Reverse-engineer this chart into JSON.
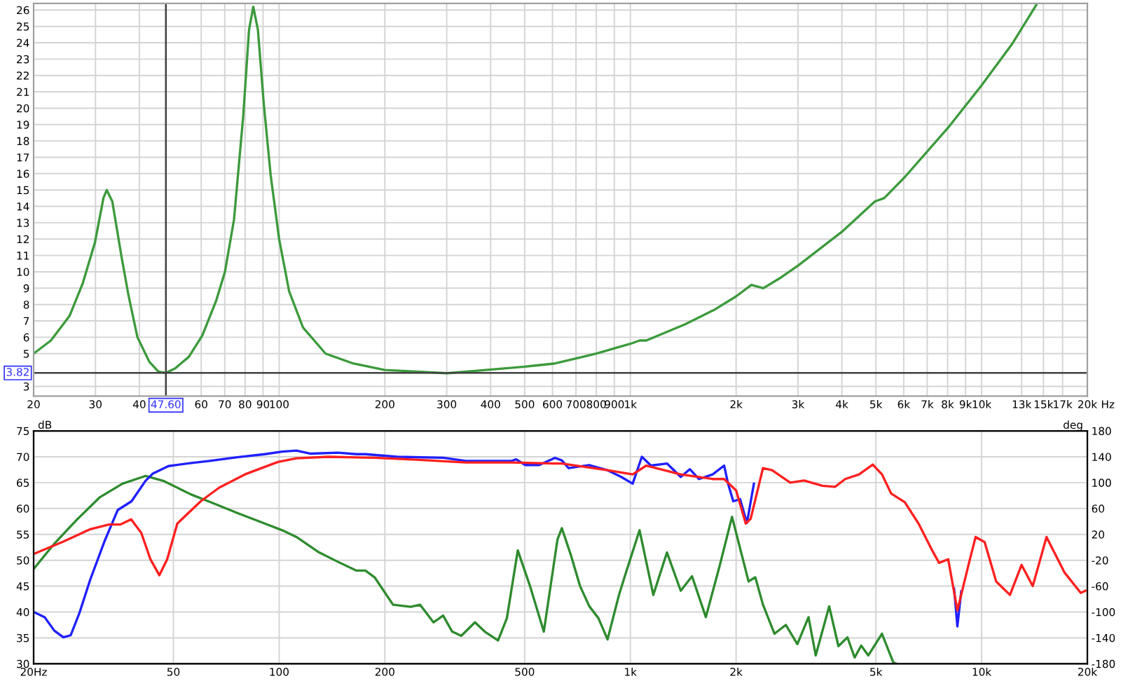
{
  "chart_data": [
    {
      "type": "line",
      "log": "x",
      "grid": true,
      "marker": "none",
      "line_style": "solid",
      "xlim": [
        20,
        20000
      ],
      "ylim": [
        2.4,
        26.4
      ],
      "xticks": [
        20,
        30,
        40,
        60,
        70,
        80,
        90,
        100,
        200,
        300,
        400,
        500,
        600,
        700,
        800,
        900,
        {
          "value": 1000,
          "label": "1k"
        },
        {
          "value": 2000,
          "label": "2k"
        },
        {
          "value": 3000,
          "label": "3k"
        },
        {
          "value": 4000,
          "label": "4k"
        },
        {
          "value": 5000,
          "label": "5k"
        },
        {
          "value": 6000,
          "label": "6k"
        },
        {
          "value": 7000,
          "label": "7k"
        },
        {
          "value": 8000,
          "label": "8k"
        },
        {
          "value": 9000,
          "label": "9k"
        },
        {
          "value": 10000,
          "label": "10k"
        },
        {
          "value": 13000,
          "label": "13k"
        },
        {
          "value": 15000,
          "label": "15k"
        },
        {
          "value": 17000,
          "label": "17k"
        },
        {
          "value": 20000,
          "label": "20k"
        }
      ],
      "xlabel": "Hz",
      "yticks": [
        3,
        5,
        6,
        7,
        8,
        9,
        10,
        11,
        12,
        13,
        14,
        15,
        16,
        17,
        18,
        19,
        20,
        21,
        22,
        23,
        24,
        25,
        26
      ],
      "ref_lines": [
        {
          "axis": "x",
          "value": 47.6,
          "label": "47.60",
          "color": "#404040"
        },
        {
          "axis": "y",
          "value": 3.82,
          "label": "3.82",
          "color": "#404040"
        }
      ],
      "series": [
        {
          "color": "#3c9a3c",
          "x": [
            20,
            22.4,
            25.3,
            27.6,
            29.9,
            31.6,
            32.3,
            33.5,
            35.6,
            37.3,
            39.5,
            42.7,
            45.3,
            47.6,
            50.6,
            55.3,
            60.4,
            66.1,
            70.1,
            74.4,
            79,
            82.1,
            84.4,
            87,
            90.4,
            94.6,
            100,
            106.8,
            116.9,
            135.6,
            162.4,
            200,
            247,
            300,
            387,
            500,
            611,
            800,
            1000,
            1062,
            1110,
            1433,
            1741,
            2000,
            2211,
            2390,
            2660,
            3010,
            4029,
            4968,
            5275,
            6050,
            8020,
            10000,
            12190,
            14300
          ],
          "values": [
            5.0,
            5.8,
            7.3,
            9.3,
            11.8,
            14.5,
            15.0,
            14.3,
            10.9,
            8.5,
            6.0,
            4.5,
            3.9,
            3.82,
            4.1,
            4.8,
            6.1,
            8.2,
            10.0,
            13.2,
            19.5,
            24.8,
            26.2,
            24.8,
            20.3,
            15.9,
            12.0,
            8.8,
            6.6,
            5.0,
            4.4,
            4.0,
            3.9,
            3.8,
            4.0,
            4.2,
            4.4,
            5.0,
            5.6,
            5.8,
            5.8,
            6.8,
            7.7,
            8.5,
            9.2,
            9.0,
            9.6,
            10.4,
            12.5,
            14.3,
            14.5,
            15.8,
            18.8,
            21.4,
            23.9,
            26.3
          ]
        }
      ]
    },
    {
      "type": "line",
      "log": "x",
      "grid": true,
      "marker": "none",
      "line_style": "solid",
      "xlim": [
        20,
        20000
      ],
      "ylim": [
        30,
        75
      ],
      "y2lim": [
        -180,
        180
      ],
      "ylabel": "dB",
      "y2label": "deg",
      "xticks": [
        {
          "value": 20,
          "label": "20Hz"
        },
        50,
        100,
        200,
        500,
        {
          "value": 1000,
          "label": "1k"
        },
        {
          "value": 2000,
          "label": "2k"
        },
        {
          "value": 5000,
          "label": "5k"
        },
        {
          "value": 10000,
          "label": "10k"
        },
        {
          "value": 20000,
          "label": "20k"
        }
      ],
      "yticks": [
        30,
        35,
        40,
        45,
        50,
        55,
        60,
        65,
        70,
        75
      ],
      "y2ticks": [
        -180,
        -140,
        -100,
        -60,
        -20,
        20,
        60,
        100,
        140,
        180
      ],
      "series": [
        {
          "color": "#2e8b2e",
          "x": [
            20,
            22.9,
            26.6,
            30.9,
            35.8,
            41.7,
            47,
            56.2,
            65.1,
            75.6,
            91,
            102,
            112,
            130,
            147,
            166,
            176,
            187,
            211,
            237,
            252,
            275,
            293,
            311,
            330,
            361,
            385,
            420,
            445,
            478,
            518,
            567,
            620,
            638,
            677,
            719,
            764,
            811,
            861,
            928,
            971,
            1062,
            1162,
            1271,
            1391,
            1498,
            1640,
            1795,
            1947,
            2170,
            2268,
            2385,
            2572,
            2770,
            2988,
            3215,
            3370,
            3681,
            3911,
            4150,
            4349,
            4541,
            4756,
            5203,
            5600,
            5720
          ],
          "values": [
            48.3,
            53.2,
            57.9,
            62.2,
            64.8,
            66.3,
            65.3,
            62.7,
            61.0,
            59.2,
            57.1,
            55.8,
            54.5,
            51.5,
            49.7,
            48.0,
            48.0,
            46.7,
            41.4,
            41.0,
            41.4,
            38.0,
            39.3,
            36.2,
            35.4,
            38.0,
            36.2,
            34.5,
            38.8,
            51.9,
            45.0,
            36.2,
            54.0,
            56.2,
            51.0,
            45.0,
            41.1,
            38.8,
            34.7,
            43.3,
            47.6,
            55.8,
            43.3,
            51.5,
            44.1,
            46.9,
            39.0,
            48.9,
            58.4,
            45.9,
            46.7,
            41.4,
            35.8,
            37.5,
            33.8,
            39.0,
            31.6,
            41.1,
            33.4,
            35.1,
            31.2,
            33.5,
            31.6,
            35.8,
            30.3,
            30.0
          ]
        },
        {
          "color": "#1f1fff",
          "x": [
            20,
            21.5,
            22.9,
            24.3,
            25.5,
            27,
            29,
            31.8,
            34.7,
            38,
            41.6,
            43.6,
            48.4,
            56.2,
            63.4,
            76,
            91,
            102,
            112,
            123,
            147,
            166,
            176,
            217,
            293,
            340,
            459,
            473,
            502,
            550,
            610,
            638,
            667,
            763,
            861,
            942,
            1015,
            1078,
            1144,
            1271,
            1391,
            1476,
            1567,
            1715,
            1849,
            1897,
            1963,
            2053,
            2147,
            2247
          ],
          "values": [
            40.0,
            39.0,
            36.4,
            35.1,
            35.5,
            39.8,
            46.3,
            53.6,
            59.7,
            61.4,
            65.3,
            66.7,
            68.2,
            68.8,
            69.2,
            69.9,
            70.5,
            71.0,
            71.2,
            70.6,
            70.8,
            70.5,
            70.5,
            70.0,
            69.8,
            69.2,
            69.2,
            69.5,
            68.4,
            68.4,
            69.8,
            69.3,
            67.8,
            68.4,
            67.4,
            66.1,
            64.8,
            70.0,
            68.3,
            68.7,
            66.1,
            67.6,
            65.7,
            66.6,
            68.3,
            64.8,
            61.4,
            61.8,
            57.2,
            64.8
          ]
        },
        {
          "color": "#1f1fff",
          "x": [
            8350,
            8530,
            8750
          ],
          "values": [
            44.5,
            37.2,
            44.0
          ]
        },
        {
          "color": "#ff1f1f",
          "x": [
            20,
            24.3,
            29,
            32.8,
            35.3,
            37.9,
            40.5,
            43,
            45.6,
            48,
            51.3,
            59.8,
            67.4,
            80.6,
            99.2,
            112,
            138,
            187,
            251,
            340,
            459,
            610,
            638,
            861,
            1015,
            1110,
            1391,
            1715,
            1849,
            2000,
            2130,
            2200,
            2385,
            2532,
            2852,
            3122,
            3523,
            3829,
            4089,
            4478,
            4898,
            5203,
            5525,
            6044,
            6612,
            7232,
            7565,
            8033,
            8530,
            9190,
            9612,
            10200,
            11000,
            12040,
            12990,
            13980,
            15300,
            17230,
            19150,
            19750
          ],
          "values": [
            51.2,
            53.6,
            56.0,
            56.9,
            56.9,
            57.9,
            55.3,
            50.2,
            47.1,
            50.2,
            57.1,
            61.4,
            64.0,
            66.7,
            69.0,
            69.7,
            70.0,
            69.8,
            69.4,
            68.9,
            68.9,
            68.7,
            68.7,
            67.4,
            66.6,
            68.3,
            66.6,
            65.7,
            65.7,
            63.5,
            57.1,
            58.0,
            67.8,
            67.4,
            65.0,
            65.4,
            64.4,
            64.2,
            65.7,
            66.6,
            68.5,
            66.6,
            62.9,
            61.2,
            57.1,
            51.9,
            49.5,
            50.2,
            40.3,
            49.3,
            54.5,
            53.5,
            45.9,
            43.3,
            49.1,
            45.0,
            54.5,
            47.6,
            43.7,
            44.1
          ]
        }
      ]
    }
  ]
}
